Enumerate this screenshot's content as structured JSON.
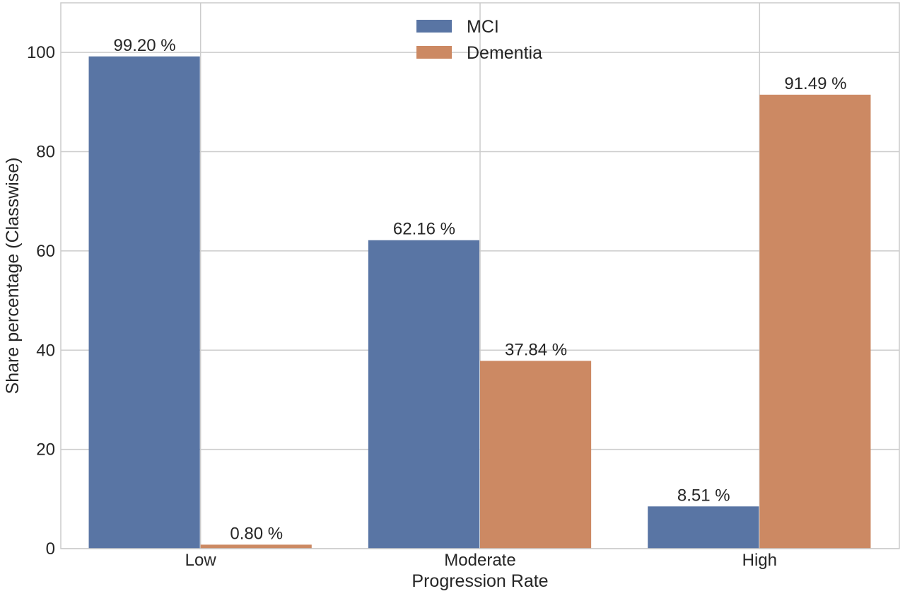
{
  "chart_data": {
    "type": "bar",
    "title": "",
    "xlabel": "Progression Rate",
    "ylabel": "Share percentage (Classwise)",
    "categories": [
      "Low",
      "Moderate",
      "High"
    ],
    "series": [
      {
        "name": "MCI",
        "color": "#5975a4",
        "values": [
          99.2,
          62.16,
          8.51
        ],
        "labels": [
          "99.20 %",
          "62.16 %",
          "8.51 %"
        ]
      },
      {
        "name": "Dementia",
        "color": "#cc8963",
        "values": [
          0.8,
          37.84,
          91.49
        ],
        "labels": [
          "0.80 %",
          "37.84 %",
          "91.49 %"
        ]
      }
    ],
    "ylim": [
      0,
      110
    ],
    "yticks": [
      0,
      20,
      40,
      60,
      80,
      100
    ],
    "ytick_labels": [
      "0",
      "20",
      "40",
      "60",
      "80",
      "100"
    ],
    "grid": true,
    "legend_position": "top-center"
  }
}
